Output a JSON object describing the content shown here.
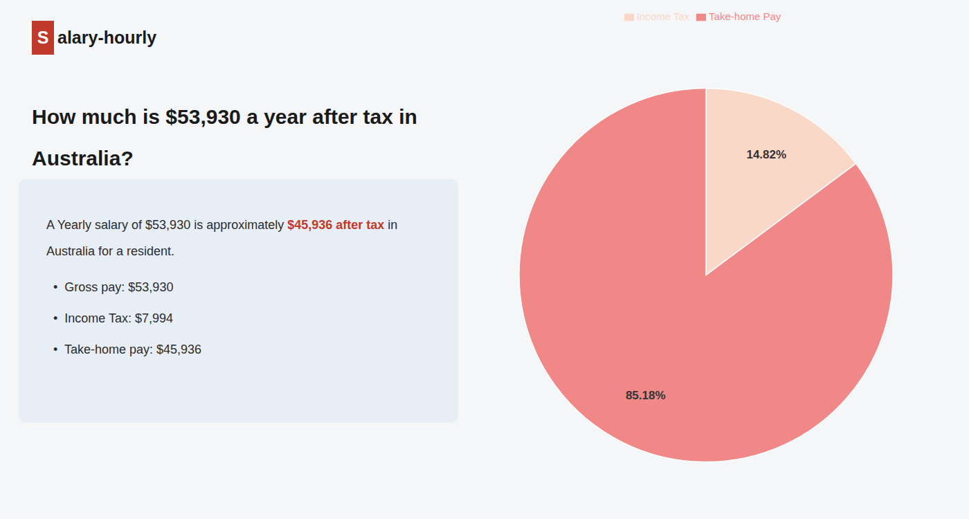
{
  "chart_data": {
    "type": "pie",
    "title": [
      "How much is $53,930 a year after tax in",
      "Australia?"
    ],
    "annotations": [
      [
        {
          "text": "S",
          "color": "#c0392b"
        },
        {
          "text": "alary-hourly"
        }
      ],
      [
        {
          "text": "A Yearly salary of $53,930 is approximately "
        },
        {
          "text": "$45,936 after tax",
          "color": "#c0392b"
        },
        {
          "text": " in"
        }
      ],
      [
        {
          "text": "Australia for a resident."
        }
      ],
      [
        {
          "text": "•  Gross pay: $53,930"
        }
      ],
      [
        {
          "text": "•  Income Tax: $7,994"
        }
      ],
      [
        {
          "text": "•  Take-home pay: $45,936"
        }
      ]
    ],
    "categories": [
      "Income Tax",
      "Take-home Pay"
    ],
    "values": [
      14.82,
      85.18
    ],
    "value_labels": [
      "14.82%",
      "85.18%"
    ],
    "colors": [
      "#fad8c8",
      "#f08888"
    ],
    "data_labels": true,
    "legend": "top"
  }
}
